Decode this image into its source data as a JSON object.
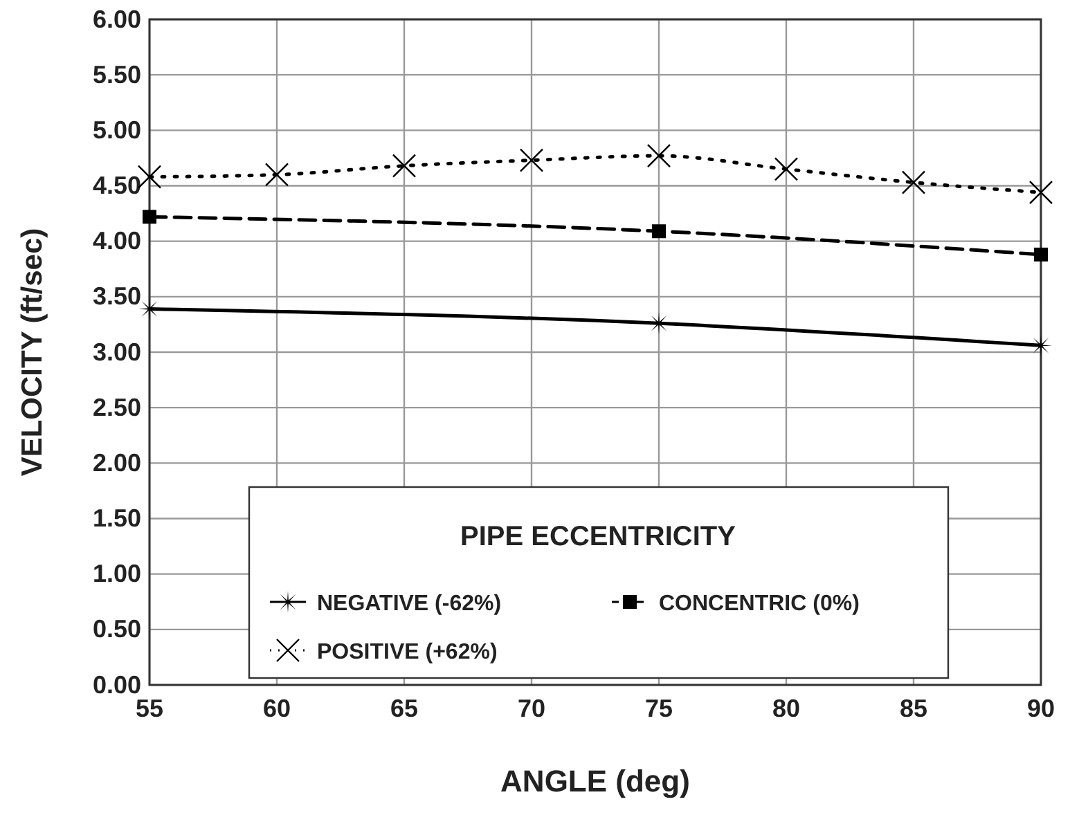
{
  "chart_data": {
    "type": "line",
    "xlabel": "ANGLE (deg)",
    "ylabel": "VELOCITY (ft/sec)",
    "legend_title": "PIPE ECCENTRICITY",
    "xlim": [
      55,
      90
    ],
    "xticks": [
      55,
      60,
      65,
      70,
      75,
      80,
      85,
      90
    ],
    "ylim": [
      0,
      6
    ],
    "yticks": [
      {
        "value": 0,
        "label": "0.00"
      },
      {
        "value": 0.5,
        "label": "0.50"
      },
      {
        "value": 1,
        "label": "1.00"
      },
      {
        "value": 1.5,
        "label": "1.50"
      },
      {
        "value": 2,
        "label": "2.00"
      },
      {
        "value": 2.5,
        "label": "2.50"
      },
      {
        "value": 3,
        "label": "3.00"
      },
      {
        "value": 3.5,
        "label": "3.50"
      },
      {
        "value": 4,
        "label": "4.00"
      },
      {
        "value": 4.5,
        "label": "4.50"
      },
      {
        "value": 5,
        "label": "5.00"
      },
      {
        "value": 5.5,
        "label": "5.50"
      },
      {
        "value": 6,
        "label": "6.00"
      }
    ],
    "grid": true,
    "legend": "bottom",
    "series": [
      {
        "name": "NEGATIVE (-62%)",
        "color": "#000000",
        "marker": "star",
        "line_style": "solid",
        "x": [
          55,
          75,
          90
        ],
        "values": [
          3.39,
          3.26,
          3.06
        ]
      },
      {
        "name": "CONCENTRIC (0%)",
        "color": "#000000",
        "marker": "square",
        "line_style": "dashed",
        "x": [
          55,
          75,
          90
        ],
        "values": [
          4.22,
          4.09,
          3.88
        ]
      },
      {
        "name": "POSITIVE (+62%)",
        "color": "#000000",
        "marker": "cross",
        "line_style": "dotted",
        "x": [
          55,
          60,
          65,
          70,
          75,
          80,
          85,
          90
        ],
        "values": [
          4.58,
          4.6,
          4.68,
          4.73,
          4.77,
          4.65,
          4.53,
          4.44
        ]
      }
    ]
  }
}
